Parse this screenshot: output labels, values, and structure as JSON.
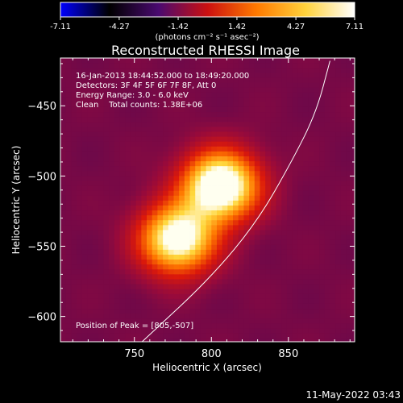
{
  "chart_data": {
    "type": "heatmap",
    "title": "Reconstructed RHESSI Image",
    "xlabel": "Heliocentric X (arcsec)",
    "ylabel": "Heliocentric Y (arcsec)",
    "xlim": [
      702,
      893
    ],
    "ylim": [
      -618,
      -416
    ],
    "x_ticks": [
      750,
      800,
      850
    ],
    "y_ticks": [
      -450,
      -500,
      -550,
      -600
    ],
    "colorbar": {
      "min": -7.11,
      "max": 7.11,
      "ticks": [
        "-7.11",
        "-4.27",
        "-1.42",
        "1.42",
        "4.27",
        "7.11"
      ],
      "unit_label": "(photons cm⁻² s⁻¹ asec⁻²)",
      "colormap": [
        "#0000ff",
        "#000000",
        "#4a0a70",
        "#cc1010",
        "#ff7a00",
        "#ffd23c",
        "#ffffff"
      ]
    },
    "info_lines": [
      "16-Jan-2013 18:44:52.000 to 18:49:20.000",
      "Detectors: 3F 4F 5F 6F 7F 8F, Att 0",
      "Energy Range: 3.0 - 6.0 keV",
      "Clean    Total counts: 1.38E+06"
    ],
    "peak_label": "Position of Peak = [805,-507]",
    "peak": [
      805,
      -507
    ],
    "sources": [
      {
        "x": 806,
        "y": -507,
        "amp": 7.11
      },
      {
        "x": 778,
        "y": -545,
        "amp": 6.3
      }
    ],
    "limb_curve": [
      [
        755,
        -618
      ],
      [
        800,
        -572
      ],
      [
        830,
        -532
      ],
      [
        852,
        -490
      ],
      [
        868,
        -455
      ],
      [
        877,
        -418
      ]
    ],
    "timestamp": "11-May-2022 03:43"
  }
}
